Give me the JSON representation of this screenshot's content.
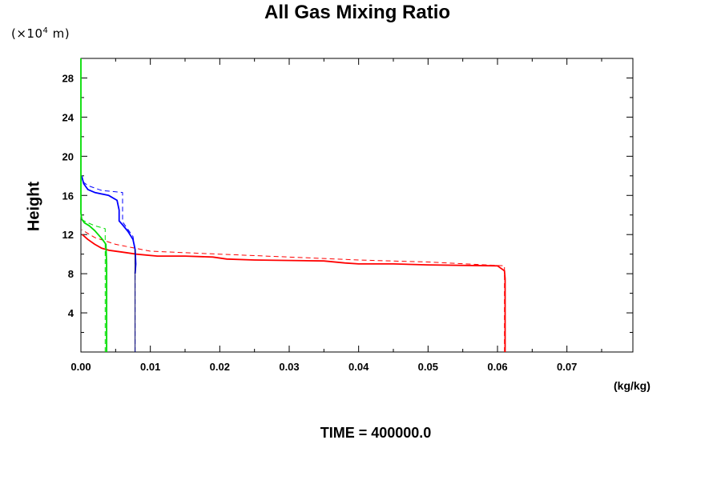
{
  "chart_data": {
    "type": "line",
    "title": "All Gas Mixing Ratio",
    "y_unit_prefix": "(×10",
    "y_unit_exp": "4",
    "y_unit_suffix": " m)",
    "ylabel": "Height",
    "xlabel": "(kg/kg)",
    "footer": "TIME = 400000.0",
    "xlim": [
      0,
      0.0795
    ],
    "ylim": [
      0,
      30
    ],
    "x_ticks": [
      {
        "value": 0.0,
        "label": "0.00"
      },
      {
        "value": 0.01,
        "label": "0.01"
      },
      {
        "value": 0.02,
        "label": "0.02"
      },
      {
        "value": 0.03,
        "label": "0.03"
      },
      {
        "value": 0.04,
        "label": "0.04"
      },
      {
        "value": 0.05,
        "label": "0.05"
      },
      {
        "value": 0.06,
        "label": "0.06"
      },
      {
        "value": 0.07,
        "label": "0.07"
      }
    ],
    "y_ticks": [
      {
        "value": 4,
        "label": "4"
      },
      {
        "value": 8,
        "label": "8"
      },
      {
        "value": 12,
        "label": "12"
      },
      {
        "value": 16,
        "label": "16"
      },
      {
        "value": 20,
        "label": "20"
      },
      {
        "value": 24,
        "label": "24"
      },
      {
        "value": 28,
        "label": "28"
      }
    ],
    "series": [
      {
        "name": "red-solid",
        "color": "#ff0000",
        "dash": "",
        "width": 1.8,
        "points": [
          [
            0.0611,
            0
          ],
          [
            0.0611,
            7.5
          ],
          [
            0.061,
            8.3
          ],
          [
            0.06,
            8.8
          ],
          [
            0.05,
            8.9
          ],
          [
            0.045,
            9.0
          ],
          [
            0.04,
            9.0
          ],
          [
            0.038,
            9.1
          ],
          [
            0.035,
            9.3
          ],
          [
            0.025,
            9.4
          ],
          [
            0.021,
            9.5
          ],
          [
            0.019,
            9.7
          ],
          [
            0.015,
            9.8
          ],
          [
            0.011,
            9.8
          ],
          [
            0.008,
            10.0
          ],
          [
            0.006,
            10.2
          ],
          [
            0.004,
            10.4
          ],
          [
            0.003,
            10.6
          ],
          [
            0.002,
            11.0
          ],
          [
            0.001,
            11.5
          ],
          [
            0.0002,
            12.0
          ]
        ]
      },
      {
        "name": "red-dashed",
        "color": "#ff0000",
        "dash": "6,4",
        "width": 1,
        "points": [
          [
            0.061,
            0
          ],
          [
            0.061,
            8.8
          ],
          [
            0.05,
            9.2
          ],
          [
            0.04,
            9.4
          ],
          [
            0.03,
            9.7
          ],
          [
            0.02,
            10.0
          ],
          [
            0.01,
            10.3
          ],
          [
            0.005,
            11.0
          ],
          [
            0.002,
            11.7
          ],
          [
            0.0001,
            12.5
          ]
        ]
      },
      {
        "name": "blue-solid",
        "color": "#0000ff",
        "dash": "",
        "width": 1.8,
        "points": [
          [
            0.0078,
            8.0
          ],
          [
            0.0079,
            9.0
          ],
          [
            0.0078,
            10.5
          ],
          [
            0.0075,
            11.5
          ],
          [
            0.0068,
            12.3
          ],
          [
            0.006,
            13.0
          ],
          [
            0.0055,
            13.4
          ],
          [
            0.0055,
            14.5
          ],
          [
            0.0052,
            15.5
          ],
          [
            0.004,
            16.0
          ],
          [
            0.002,
            16.3
          ],
          [
            0.001,
            16.6
          ],
          [
            0.0004,
            17.2
          ],
          [
            0.0001,
            18.0
          ]
        ]
      },
      {
        "name": "blue-dashed",
        "color": "#0000ff",
        "dash": "6,4",
        "width": 1,
        "points": [
          [
            0.0078,
            0
          ],
          [
            0.0078,
            10.5
          ],
          [
            0.0075,
            11.8
          ],
          [
            0.0065,
            12.8
          ],
          [
            0.006,
            13.3
          ],
          [
            0.006,
            16.3
          ],
          [
            0.003,
            16.5
          ],
          [
            0.001,
            17.0
          ],
          [
            0.0001,
            17.5
          ]
        ]
      },
      {
        "name": "dark-vertical",
        "color": "#000066",
        "dash": "",
        "width": 1,
        "points": [
          [
            0.0078,
            0
          ],
          [
            0.0078,
            10.5
          ]
        ]
      },
      {
        "name": "green-solid",
        "color": "#00dd00",
        "dash": "",
        "width": 1.8,
        "points": [
          [
            0.0037,
            0
          ],
          [
            0.0037,
            9.0
          ],
          [
            0.0036,
            11.0
          ],
          [
            0.0031,
            11.5
          ],
          [
            0.002,
            12.4
          ],
          [
            0.0012,
            12.9
          ],
          [
            0.0005,
            13.2
          ],
          [
            0.0001,
            13.6
          ],
          [
            0,
            14.2
          ],
          [
            0,
            30
          ]
        ]
      },
      {
        "name": "green-dashed",
        "color": "#00dd00",
        "dash": "6,4",
        "width": 1,
        "points": [
          [
            0.0035,
            0
          ],
          [
            0.0035,
            12.6
          ],
          [
            0.002,
            12.9
          ],
          [
            0.001,
            13.2
          ],
          [
            0.0002,
            13.5
          ]
        ]
      }
    ]
  }
}
